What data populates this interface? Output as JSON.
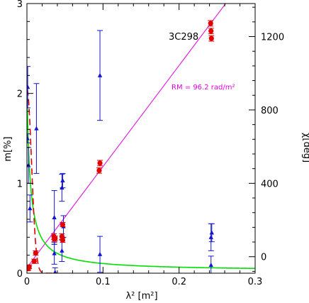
{
  "chart_data": {
    "type": "scatter",
    "source_label": "3C298",
    "rm_label": "RM =  96.2 rad/m²",
    "xlabel": "λ² [m²]",
    "ylabel_left": "m[%]",
    "ylabel_right": "χ[deg]",
    "xlim": [
      0,
      0.3
    ],
    "ylim_left": [
      0,
      3
    ],
    "ylim_right": [
      -90,
      1380
    ],
    "x_ticks": [
      "0",
      "0.1",
      "0.2",
      "0.3"
    ],
    "y_left_ticks": [
      "0",
      "1",
      "2",
      "3"
    ],
    "y_right_ticks": [
      "0",
      "400",
      "800",
      "1200"
    ],
    "colors": {
      "pol_fraction": "#1515d0",
      "angle": "#e00000",
      "rm_fit": "#e000e0",
      "depol_model": "#00e000",
      "dashed_model": "#e00000"
    },
    "series": [
      {
        "name": "",
        "axis": "left",
        "marker": "triangle",
        "points": [
          {
            "x": 0.0006,
            "y": 1.5,
            "err": 0.05
          },
          {
            "x": 0.001,
            "y": 2.07,
            "err": 0.23
          },
          {
            "x": 0.002,
            "y": 1.2,
            "err": 0.2
          },
          {
            "x": 0.004,
            "y": 0.72,
            "err": 0.15
          },
          {
            "x": 0.0125,
            "y": 1.61,
            "err": 0.5
          },
          {
            "x": 0.036,
            "y": 0.62,
            "err": 0.3
          },
          {
            "x": 0.036,
            "y": 0.22,
            "err": 0.12
          },
          {
            "x": 0.037,
            "y": 0.01,
            "err": 0.05
          },
          {
            "x": 0.046,
            "y": 0.95,
            "err": 0.15
          },
          {
            "x": 0.046,
            "y": 0.25,
            "err": 0.12
          },
          {
            "x": 0.047,
            "y": 1.03,
            "err": 0.08
          },
          {
            "x": 0.048,
            "y": 0.52,
            "err": 0.12
          },
          {
            "x": 0.096,
            "y": 2.2,
            "err": 0.5
          },
          {
            "x": 0.096,
            "y": 0.21,
            "err": 0.2
          },
          {
            "x": 0.242,
            "y": 0.4,
            "err": 0.15
          },
          {
            "x": 0.242,
            "y": 0.09,
            "err": 0.1
          },
          {
            "x": 0.243,
            "y": 0.45,
            "err": 0.1
          }
        ]
      },
      {
        "name": "",
        "axis": "right",
        "marker": "circle",
        "points": [
          {
            "x": 0.0012,
            "y": -65,
            "err": 12
          },
          {
            "x": 0.002,
            "y": -60,
            "err": 12
          },
          {
            "x": 0.003,
            "y": -55,
            "err": 10
          },
          {
            "x": 0.0095,
            "y": -25,
            "err": 12
          },
          {
            "x": 0.0115,
            "y": 20,
            "err": 12
          },
          {
            "x": 0.0355,
            "y": 110,
            "err": 15
          },
          {
            "x": 0.036,
            "y": 95,
            "err": 12
          },
          {
            "x": 0.037,
            "y": 100,
            "err": 12
          },
          {
            "x": 0.046,
            "y": 110,
            "err": 15
          },
          {
            "x": 0.047,
            "y": 90,
            "err": 12
          },
          {
            "x": 0.047,
            "y": 175,
            "err": 12
          },
          {
            "x": 0.095,
            "y": 470,
            "err": 15
          },
          {
            "x": 0.096,
            "y": 510,
            "err": 15
          },
          {
            "x": 0.2415,
            "y": 1272,
            "err": 15
          },
          {
            "x": 0.242,
            "y": 1230,
            "err": 15
          },
          {
            "x": 0.2425,
            "y": 1190,
            "err": 15
          }
        ]
      }
    ],
    "rm_fit": {
      "axis": "right",
      "slope": 5512,
      "intercept": -60
    },
    "depol_model": {
      "axis": "left",
      "a": 2.05,
      "b": 0.0042,
      "floor": 0.025
    },
    "dashed_model": {
      "axis": "left",
      "a": 2.05,
      "sigma": 0.006
    }
  }
}
